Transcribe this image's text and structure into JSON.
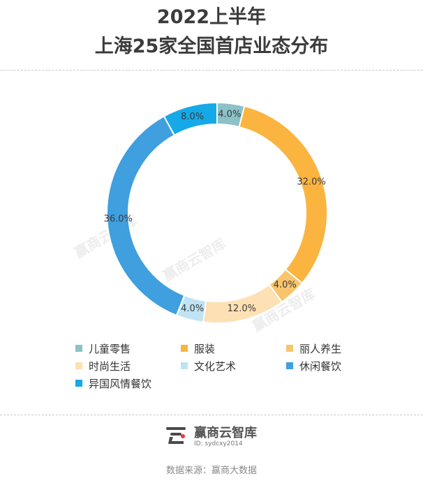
{
  "chart_data": {
    "type": "pie",
    "donut": true,
    "title_line1": "2022上半年",
    "title_line2": "上海25家全国首店业态分布",
    "categories": [
      "儿童零售",
      "服装",
      "丽人养生",
      "时尚生活",
      "文化艺术",
      "休闲餐饮",
      "异国风情餐饮"
    ],
    "values": [
      4.0,
      32.0,
      4.0,
      12.0,
      4.0,
      36.0,
      8.0
    ],
    "value_labels": [
      "4.0%",
      "32.0%",
      "4.0%",
      "12.0%",
      "4.0%",
      "36.0%",
      "8.0%"
    ],
    "colors": [
      "#8cc1c7",
      "#fbb43f",
      "#f8c56d",
      "#fde0b3",
      "#bfe3f3",
      "#3f9fdf",
      "#15a9e8"
    ],
    "legend_position": "bottom",
    "start_angle": "top, clockwise"
  },
  "watermark": "赢商云智库",
  "brand": {
    "name": "赢商云智库",
    "id": "ID: sydcxy2014",
    "logo_icon": "yingshang-logo-icon"
  },
  "source": "数据来源：赢商大数据"
}
